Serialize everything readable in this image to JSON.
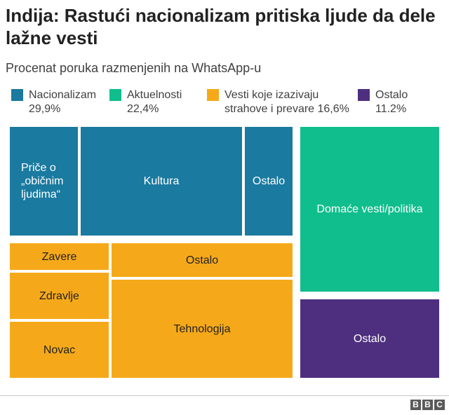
{
  "header": {
    "title": "Indija: Rastući nacionalizam pritiska ljude da dele lažne vesti",
    "subtitle": "Procenat poruka razmenjenih na WhatsApp-u"
  },
  "legend": [
    {
      "label": "Nacionalizam",
      "value": "29,9%",
      "color": "#1a7aa0"
    },
    {
      "label": "Aktuelnosti",
      "value": "22,4%",
      "color": "#0fbe8c"
    },
    {
      "label": "Vesti koje izazivaju",
      "value": "strahove i prevare 16,6%",
      "color": "#f5a91a"
    },
    {
      "label": "Ostalo",
      "value": "11.2%",
      "color": "#4e2f7f"
    }
  ],
  "chart_data": {
    "type": "treemap",
    "title": "Indija: Rastući nacionalizam pritiska ljude da dele lažne vesti",
    "subtitle": "Procenat poruka razmenjenih na WhatsApp-u",
    "groups": [
      {
        "name": "Nacionalizam",
        "value": 29.9,
        "children": [
          "Priče o „običnim ljudima“",
          "Kultura",
          "Ostalo"
        ]
      },
      {
        "name": "Aktuelnosti",
        "value": 22.4,
        "children": [
          "Domaće vesti/politika",
          "Ostalo"
        ]
      },
      {
        "name": "Vesti koje izazivaju strahove i prevare",
        "value": 16.6,
        "children": [
          "Zavere",
          "Zdravlje",
          "Novac",
          "Ostalo",
          "Tehnologija"
        ]
      },
      {
        "name": "Ostalo",
        "value": 11.2,
        "children": []
      }
    ],
    "tiles": [
      {
        "label": "Priče o\n„običnim\nljudima“",
        "group": "Nacionalizam",
        "color": "#1a7aa0"
      },
      {
        "label": "Kultura",
        "group": "Nacionalizam",
        "color": "#1a7aa0"
      },
      {
        "label": "Ostalo",
        "group": "Nacionalizam",
        "color": "#1a7aa0"
      },
      {
        "label": "Domaće vesti/politika",
        "group": "Aktuelnosti",
        "color": "#0fbe8c"
      },
      {
        "label": "Ostalo",
        "group": "Ostalo",
        "color": "#4e2f7f"
      },
      {
        "label": "Zavere",
        "group": "Vesti koje izazivaju strahove i prevare",
        "color": "#f5a91a"
      },
      {
        "label": "Zdravlje",
        "group": "Vesti koje izazivaju strahove i prevare",
        "color": "#f5a91a"
      },
      {
        "label": "Novac",
        "group": "Vesti koje izazivaju strahove i prevare",
        "color": "#f5a91a"
      },
      {
        "label": "Ostalo",
        "group": "Vesti koje izazivaju strahove i prevare",
        "color": "#f5a91a"
      },
      {
        "label": "Tehnologija",
        "group": "Vesti koje izazivaju strahove i prevare",
        "color": "#f5a91a"
      }
    ]
  },
  "footer": {
    "logo": [
      "B",
      "B",
      "C"
    ]
  }
}
